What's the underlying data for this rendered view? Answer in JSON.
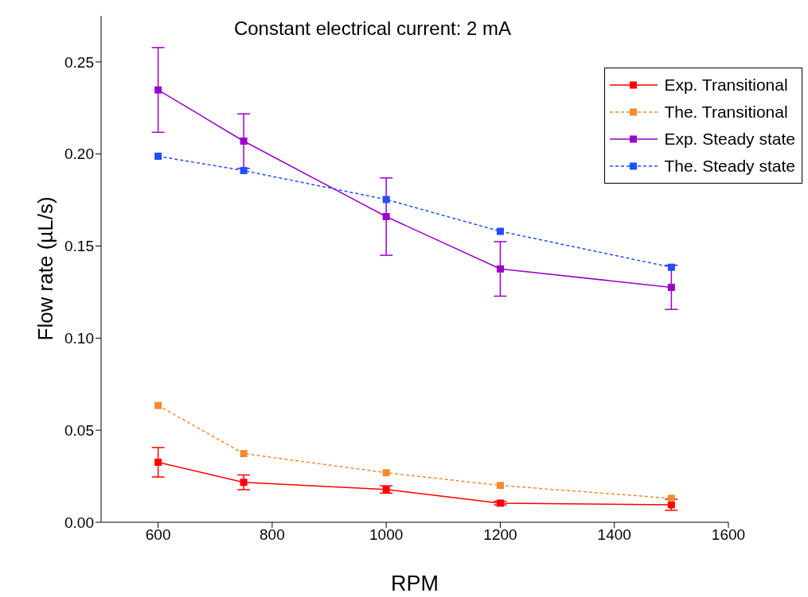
{
  "chart_data": {
    "type": "line",
    "title": "Constant electrical current: 2 mA",
    "xlabel": "RPM",
    "ylabel": "Flow rate (µL/s)",
    "x": [
      600,
      750,
      1000,
      1200,
      1500
    ],
    "series": [
      {
        "name": "Exp. Transitional",
        "color": "#ff0000",
        "values": [
          0.0326,
          0.0217,
          0.0178,
          0.0104,
          0.0095
        ],
        "errors": [
          0.008,
          0.004,
          0.002,
          0.001,
          0.003
        ],
        "line_style": "solid"
      },
      {
        "name": "The. Transitional",
        "color": "#f28a2e",
        "values": [
          0.0634,
          0.0373,
          0.0269,
          0.02,
          0.013
        ],
        "line_style": "dashed"
      },
      {
        "name": "Exp. Steady state",
        "color": "#9900cc",
        "values": [
          0.2348,
          0.207,
          0.166,
          0.1376,
          0.1276
        ],
        "errors": [
          0.023,
          0.0148,
          0.021,
          0.0148,
          0.012
        ],
        "line_style": "solid"
      },
      {
        "name": "The. Steady state",
        "color": "#1f4fff",
        "values": [
          0.1988,
          0.191,
          0.1753,
          0.158,
          0.1385
        ],
        "line_style": "dashed"
      }
    ],
    "xlim": [
      500,
      1600
    ],
    "xticks": [
      600,
      800,
      1000,
      1200,
      1400,
      1600
    ],
    "ylim": [
      0,
      0.275
    ],
    "yticks": [
      {
        "value": 0,
        "label": "0.00"
      },
      {
        "value": 0.05,
        "label": "0.05"
      },
      {
        "value": 0.1,
        "label": "0.10"
      },
      {
        "value": 0.15,
        "label": "0.15"
      },
      {
        "value": 0.2,
        "label": "0.20"
      },
      {
        "value": 0.25,
        "label": "0.25"
      }
    ],
    "marker": "square",
    "grid": false,
    "legend": "top right"
  }
}
